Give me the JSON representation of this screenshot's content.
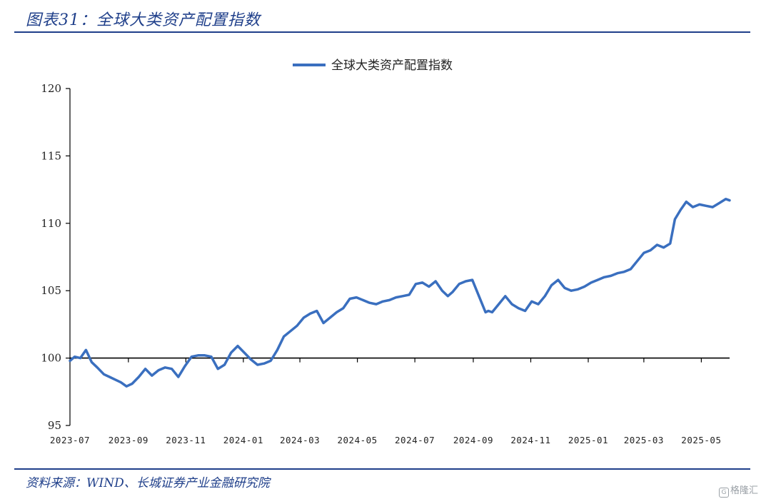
{
  "header": {
    "title": "图表31：全球大类资产配置指数"
  },
  "footer": {
    "source": "资料来源：WIND、长城证券产业金融研究院",
    "watermark": "格隆汇",
    "watermark_icon": "gelonghui-logo-icon"
  },
  "colors": {
    "accent": "#1f3f8a",
    "series": "#3a6fbf",
    "axis": "#000000"
  },
  "chart_data": {
    "type": "line",
    "title": "",
    "xlabel": "",
    "ylabel": "",
    "ylim": [
      95,
      120
    ],
    "yticks": [
      95,
      100,
      105,
      110,
      115,
      120
    ],
    "xlim": [
      "2023-07-01",
      "2025-05-31"
    ],
    "xticks": [
      "2023-07",
      "2023-09",
      "2023-11",
      "2024-01",
      "2024-03",
      "2024-05",
      "2024-07",
      "2024-09",
      "2024-11",
      "2025-01",
      "2025-03",
      "2025-05"
    ],
    "grid": false,
    "legend": "top-center",
    "baseline": 100,
    "series": [
      {
        "name": "全球大类资产配置指数",
        "x": [
          "2023-07-01",
          "2023-07-06",
          "2023-07-12",
          "2023-07-18",
          "2023-07-24",
          "2023-07-30",
          "2023-08-06",
          "2023-08-12",
          "2023-08-18",
          "2023-08-24",
          "2023-08-30",
          "2023-09-05",
          "2023-09-12",
          "2023-09-19",
          "2023-09-26",
          "2023-10-03",
          "2023-10-10",
          "2023-10-17",
          "2023-10-24",
          "2023-10-31",
          "2023-11-07",
          "2023-11-14",
          "2023-11-21",
          "2023-11-28",
          "2023-12-05",
          "2023-12-12",
          "2023-12-19",
          "2023-12-26",
          "2024-01-02",
          "2024-01-09",
          "2024-01-16",
          "2024-01-23",
          "2024-01-30",
          "2024-02-06",
          "2024-02-13",
          "2024-02-20",
          "2024-02-27",
          "2024-03-05",
          "2024-03-12",
          "2024-03-19",
          "2024-03-26",
          "2024-04-02",
          "2024-04-09",
          "2024-04-16",
          "2024-04-23",
          "2024-04-30",
          "2024-05-07",
          "2024-05-14",
          "2024-05-21",
          "2024-05-28",
          "2024-06-04",
          "2024-06-11",
          "2024-06-18",
          "2024-06-25",
          "2024-07-02",
          "2024-07-09",
          "2024-07-16",
          "2024-07-23",
          "2024-07-30",
          "2024-08-05",
          "2024-08-10",
          "2024-08-17",
          "2024-08-24",
          "2024-08-31",
          "2024-09-07",
          "2024-09-14",
          "2024-09-17",
          "2024-09-21",
          "2024-09-28",
          "2024-10-05",
          "2024-10-12",
          "2024-10-19",
          "2024-10-26",
          "2024-11-02",
          "2024-11-09",
          "2024-11-16",
          "2024-11-23",
          "2024-11-30",
          "2024-12-07",
          "2024-12-14",
          "2024-12-21",
          "2024-12-28",
          "2025-01-04",
          "2025-01-11",
          "2025-01-18",
          "2025-01-25",
          "2025-02-01",
          "2025-02-08",
          "2025-02-15",
          "2025-02-22",
          "2025-03-01",
          "2025-03-08",
          "2025-03-15",
          "2025-03-22",
          "2025-03-29",
          "2025-04-03",
          "2025-04-09",
          "2025-04-15",
          "2025-04-22",
          "2025-04-29",
          "2025-05-06",
          "2025-05-13",
          "2025-05-20",
          "2025-05-27",
          "2025-05-31"
        ],
        "values": [
          99.8,
          100.1,
          100.0,
          100.6,
          99.7,
          99.3,
          98.8,
          98.6,
          98.4,
          98.2,
          97.9,
          98.1,
          98.6,
          99.2,
          98.7,
          99.1,
          99.3,
          99.2,
          98.6,
          99.4,
          100.1,
          100.2,
          100.2,
          100.1,
          99.2,
          99.5,
          100.4,
          100.9,
          100.4,
          99.9,
          99.5,
          99.6,
          99.8,
          100.6,
          101.6,
          102.0,
          102.4,
          103.0,
          103.3,
          103.5,
          102.6,
          103.0,
          103.4,
          103.7,
          104.4,
          104.5,
          104.3,
          104.1,
          104.0,
          104.2,
          104.3,
          104.5,
          104.6,
          104.7,
          105.5,
          105.6,
          105.3,
          105.7,
          105.0,
          104.6,
          104.9,
          105.5,
          105.7,
          105.8,
          104.6,
          103.4,
          103.5,
          103.4,
          104.0,
          104.6,
          104.0,
          103.7,
          103.5,
          104.2,
          104.0,
          104.6,
          105.4,
          105.8,
          105.2,
          105.0,
          105.1,
          105.3,
          105.6,
          105.8,
          106.0,
          106.1,
          106.3,
          106.4,
          106.6,
          107.2,
          107.8,
          108.0,
          108.4,
          108.2,
          108.5,
          110.3,
          111.0,
          111.6,
          111.2,
          111.4,
          111.3,
          111.2,
          111.5,
          111.8,
          111.7
        ]
      }
    ]
  }
}
